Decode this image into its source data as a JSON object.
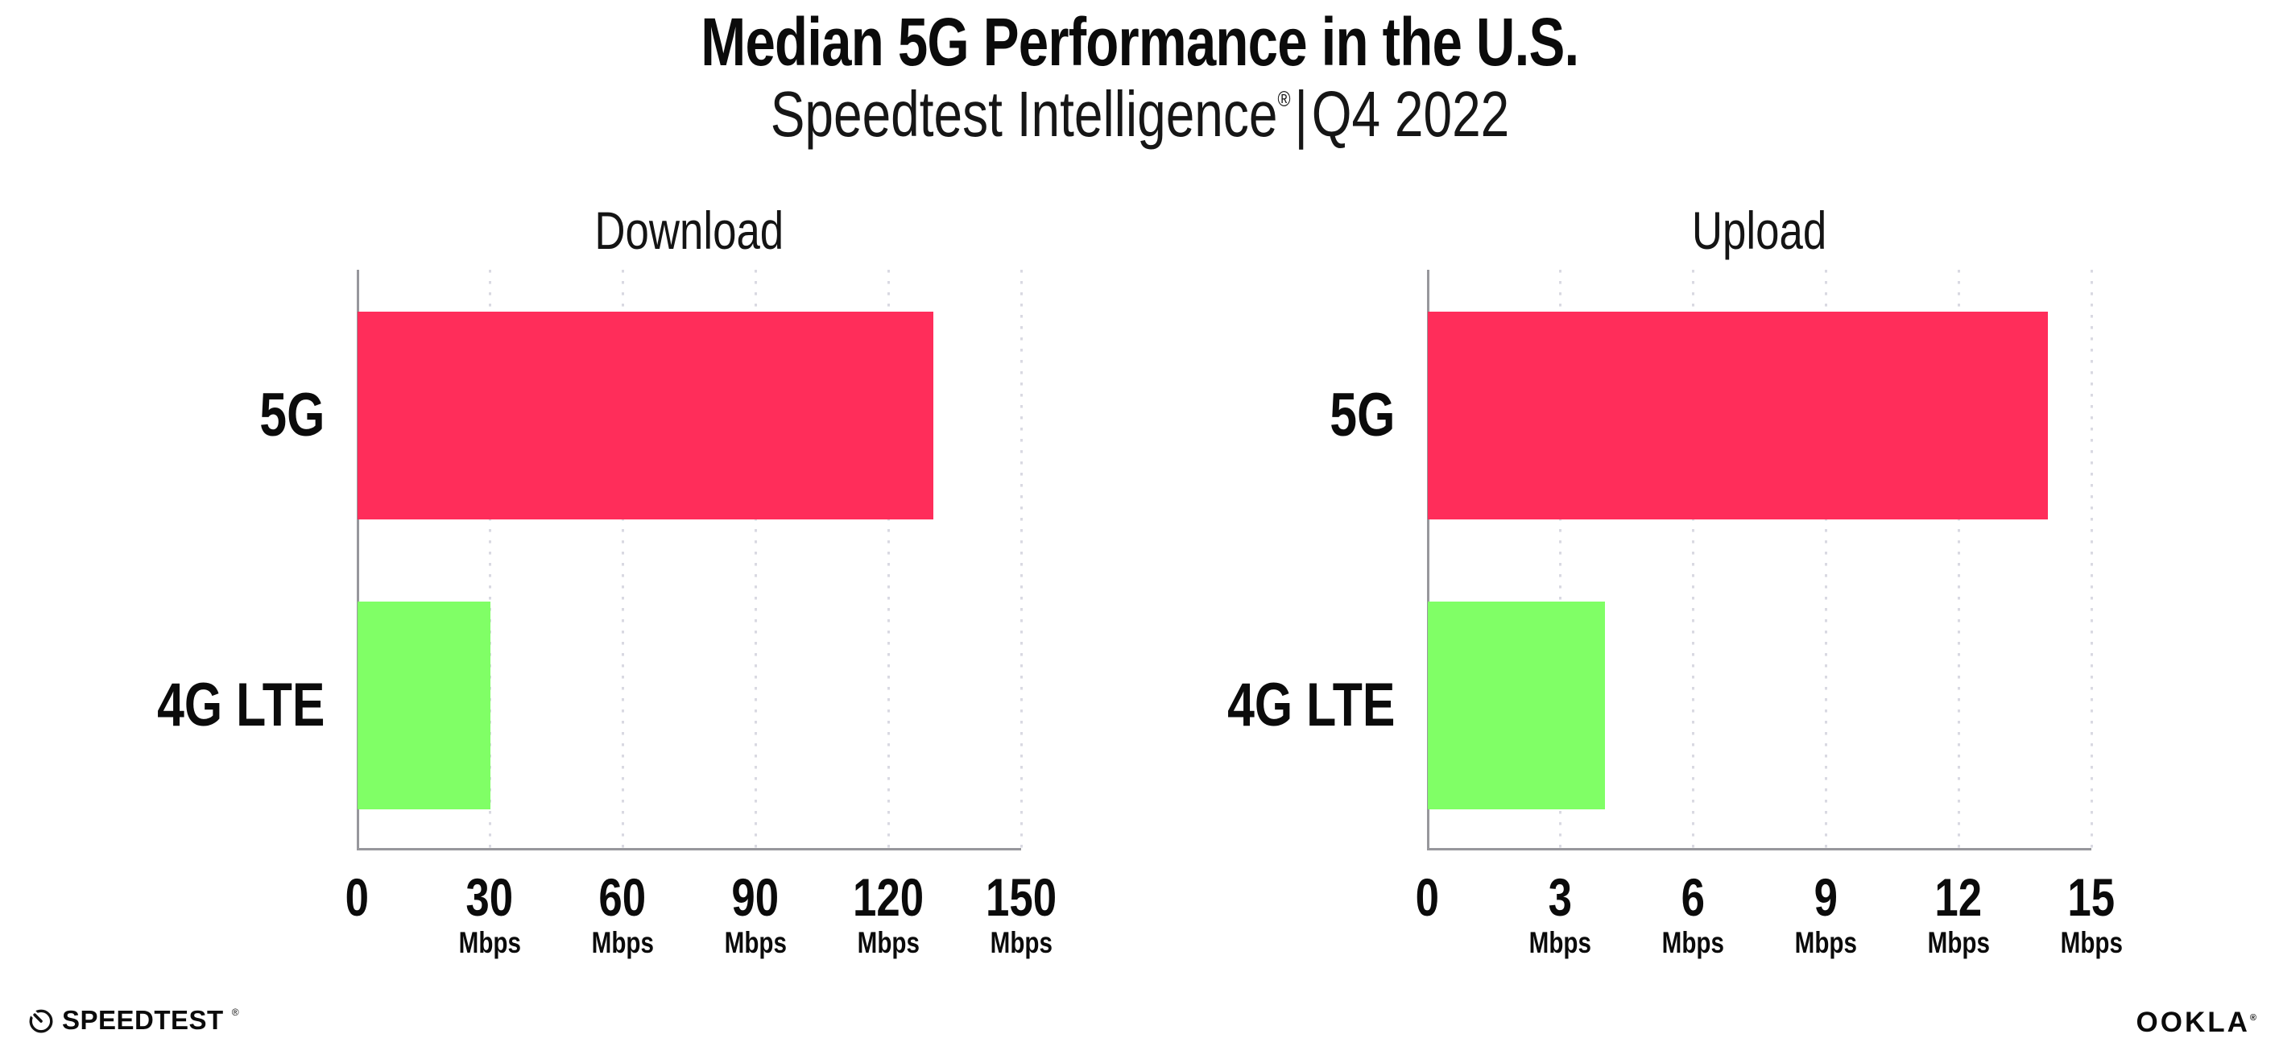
{
  "header": {
    "title": "Median 5G Performance in the U.S.",
    "subtitle": {
      "brand": "Speedtest Intelligence",
      "reg": "®",
      "separator": "|",
      "period": "Q4 2022"
    }
  },
  "chart_data": [
    {
      "type": "bar",
      "orientation": "horizontal",
      "title": "Download",
      "categories": [
        "5G",
        "4G LTE"
      ],
      "values": [
        130,
        30
      ],
      "unit": "Mbps",
      "xlim": [
        0,
        150
      ],
      "xticks": [
        0,
        30,
        60,
        90,
        120,
        150
      ],
      "bar_colors": [
        "#FF2D5A",
        "#80FF66"
      ],
      "grid": "vertical-dotted",
      "legend_position": "none"
    },
    {
      "type": "bar",
      "orientation": "horizontal",
      "title": "Upload",
      "categories": [
        "5G",
        "4G LTE"
      ],
      "values": [
        14,
        4
      ],
      "unit": "Mbps",
      "xlim": [
        0,
        15
      ],
      "xticks": [
        0,
        3,
        6,
        9,
        12,
        15
      ],
      "bar_colors": [
        "#FF2D5A",
        "#80FF66"
      ],
      "grid": "vertical-dotted",
      "legend_position": "none"
    }
  ],
  "footer": {
    "speedtest": {
      "wordmark": "SPEEDTEST",
      "reg": "®"
    },
    "ookla": {
      "wordmark": "OOKLA",
      "reg": "®"
    }
  },
  "colors": {
    "bar_5g": "#FF2D5A",
    "bar_4g_lte": "#80FF66",
    "axis": "#97979C",
    "gridline": "#D9D9E2",
    "text": "#0B0B0B",
    "background": "#FFFFFF"
  }
}
